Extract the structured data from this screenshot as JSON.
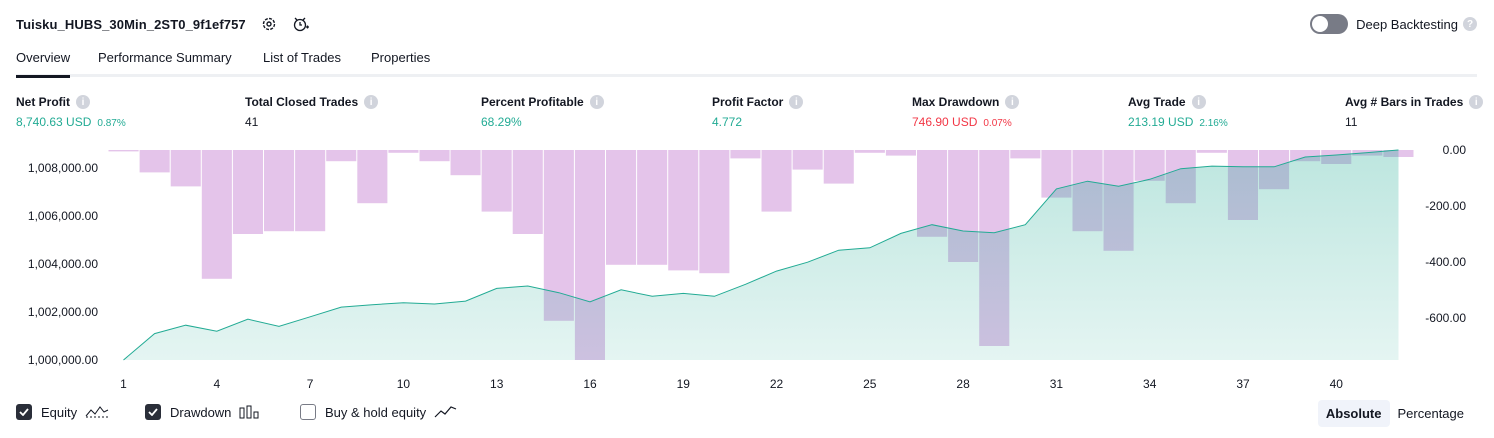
{
  "header": {
    "title": "Tuisku_HUBS_30Min_2ST0_9f1ef757",
    "deep_backtesting_label": "Deep Backtesting",
    "deep_backtesting_on": false
  },
  "tabs": [
    "Overview",
    "Performance Summary",
    "List of Trades",
    "Properties"
  ],
  "active_tab": "Overview",
  "metrics": [
    {
      "label": "Net Profit",
      "value": "8,740.63 USD",
      "pct": "0.87%",
      "color": "#22ab94"
    },
    {
      "label": "Total Closed Trades",
      "value": "41",
      "pct": "",
      "color": "#131722"
    },
    {
      "label": "Percent Profitable",
      "value": "68.29%",
      "pct": "",
      "color": "#22ab94"
    },
    {
      "label": "Profit Factor",
      "value": "4.772",
      "pct": "",
      "color": "#22ab94"
    },
    {
      "label": "Max Drawdown",
      "value": "746.90 USD",
      "pct": "0.07%",
      "color": "#f23645"
    },
    {
      "label": "Avg Trade",
      "value": "213.19 USD",
      "pct": "2.16%",
      "color": "#22ab94"
    },
    {
      "label": "Avg # Bars in Trades",
      "value": "11",
      "pct": "",
      "color": "#131722"
    }
  ],
  "legend": {
    "equity": {
      "label": "Equity",
      "checked": true
    },
    "drawdown": {
      "label": "Drawdown",
      "checked": true
    },
    "buy_hold": {
      "label": "Buy & hold equity",
      "checked": false
    }
  },
  "modes": {
    "absolute": "Absolute",
    "percentage": "Percentage",
    "active": "Absolute"
  },
  "chart_data": {
    "type": "area",
    "x": [
      1,
      2,
      3,
      4,
      5,
      6,
      7,
      8,
      9,
      10,
      11,
      12,
      13,
      14,
      15,
      16,
      17,
      18,
      19,
      20,
      21,
      22,
      23,
      24,
      25,
      26,
      27,
      28,
      29,
      30,
      31,
      32,
      33,
      34,
      35,
      36,
      37,
      38,
      39,
      40,
      41,
      42
    ],
    "x_tick_labels": [
      "1",
      "4",
      "7",
      "10",
      "13",
      "16",
      "19",
      "22",
      "25",
      "28",
      "31",
      "34",
      "37",
      "40"
    ],
    "series": [
      {
        "axis": "left",
        "values": [
          1000000,
          1001100,
          1001450,
          1001200,
          1001700,
          1001400,
          1001800,
          1002200,
          1002300,
          1002380,
          1002330,
          1002450,
          1002980,
          1003080,
          1002800,
          1002420,
          1002920,
          1002650,
          1002770,
          1002650,
          1003150,
          1003700,
          1004070,
          1004570,
          1004670,
          1005270,
          1005630,
          1005370,
          1005300,
          1005630,
          1007120,
          1007440,
          1007230,
          1007520,
          1007960,
          1008070,
          1008040,
          1008040,
          1008450,
          1008530,
          1008630,
          1008740
        ]
      },
      {
        "axis": "right",
        "values": [
          -5,
          -80,
          -130,
          -460,
          -300,
          -290,
          -290,
          -40,
          -190,
          -10,
          -40,
          -90,
          -220,
          -300,
          -610,
          -750,
          -410,
          -410,
          -430,
          -440,
          -30,
          -220,
          -70,
          -120,
          -10,
          -20,
          -310,
          -400,
          -700,
          -30,
          -170,
          -290,
          -360,
          -110,
          -190,
          -10,
          -250,
          -140,
          -40,
          -50,
          -20,
          -25
        ]
      }
    ],
    "y_left": {
      "ticks": [
        "1,000,000.00",
        "1,002,000.00",
        "1,004,000.00",
        "1,006,000.00",
        "1,008,000.00"
      ],
      "range": [
        1000000,
        1008740
      ]
    },
    "y_right": {
      "ticks": [
        "0.00",
        "-200.00",
        "-400.00",
        "-600.00"
      ],
      "range": [
        -750,
        0
      ]
    },
    "equity_color": "#22ab94",
    "drawdown_color": "#ce93d8"
  }
}
